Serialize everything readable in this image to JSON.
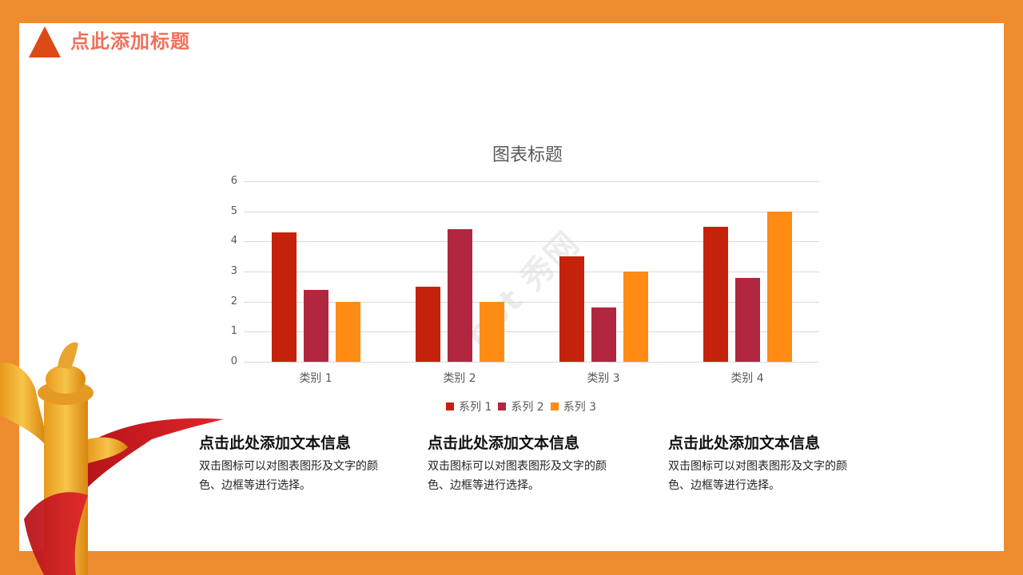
{
  "slide": {
    "title": "点此添加标题",
    "colors": {
      "border": "#ef8c30",
      "title_text": "#f0705a",
      "title_triangle": "#dc4a17"
    }
  },
  "chart_data": {
    "type": "bar",
    "title": "图表标题",
    "categories": [
      "类别 1",
      "类别 2",
      "类别 3",
      "类别 4"
    ],
    "series": [
      {
        "name": "系列 1",
        "color": "#c5220b",
        "values": [
          4.3,
          2.5,
          3.5,
          4.5
        ]
      },
      {
        "name": "系列 2",
        "color": "#b0273f",
        "values": [
          2.4,
          4.4,
          1.8,
          2.8
        ]
      },
      {
        "name": "系列 3",
        "color": "#fd8b14",
        "values": [
          2,
          2,
          3,
          5
        ]
      }
    ],
    "xlabel": "",
    "ylabel": "",
    "ylim": [
      0,
      6
    ],
    "yticks": [
      "0",
      "1",
      "2",
      "3",
      "4",
      "5",
      "6"
    ],
    "grid": true,
    "legend_position": "bottom"
  },
  "watermark": "ppt 秀网",
  "info_blocks": [
    {
      "heading": "点击此处添加文本信息",
      "body": "双击图标可以对图表图形及文字的颜色、边框等进行选择。"
    },
    {
      "heading": "点击此处添加文本信息",
      "body": "双击图标可以对图表图形及文字的颜色、边框等进行选择。"
    },
    {
      "heading": "点击此处添加文本信息",
      "body": "双击图标可以对图表图形及文字的颜色、边框等进行选择。"
    }
  ]
}
